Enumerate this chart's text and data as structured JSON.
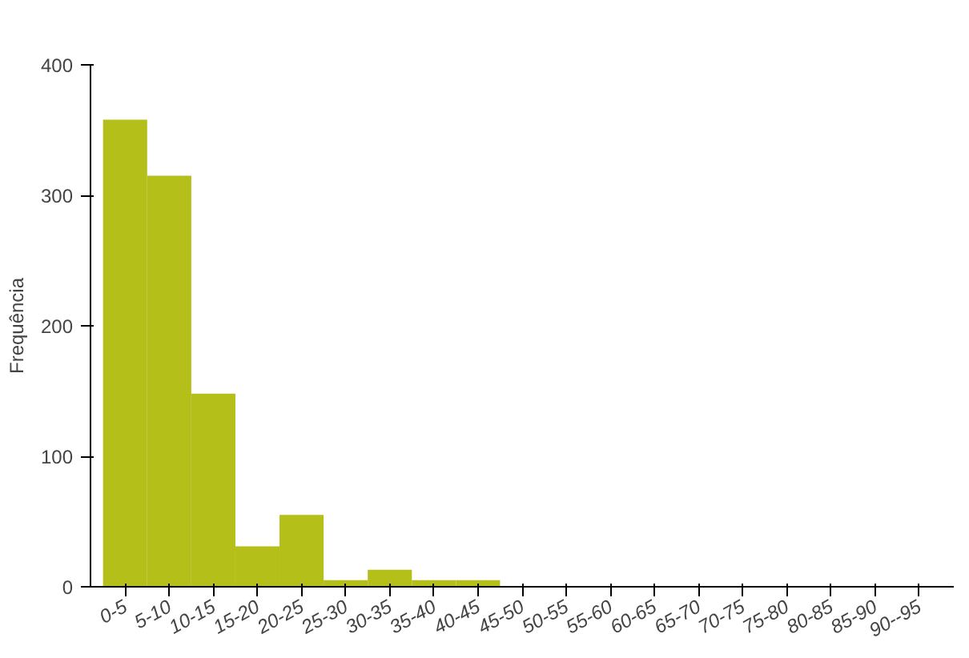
{
  "chart_data": {
    "type": "bar",
    "ylabel": "Frequência",
    "categories": [
      "0-5",
      "5-10",
      "10-15",
      "15-20",
      "20-25",
      "25-30",
      "30-35",
      "35-40",
      "40-45",
      "45-50",
      "50-55",
      "55-60",
      "60-65",
      "65-70",
      "70-75",
      "75-80",
      "80-85",
      "85-90",
      "90--95"
    ],
    "values": [
      358,
      315,
      148,
      31,
      55,
      5,
      13,
      5,
      5,
      0,
      0,
      0,
      0,
      0,
      0,
      0,
      0,
      0,
      0
    ],
    "color": "#b5bf1a",
    "ylim": [
      0,
      400
    ],
    "yticks": [
      0,
      100,
      200,
      300,
      400
    ],
    "grid": false
  }
}
